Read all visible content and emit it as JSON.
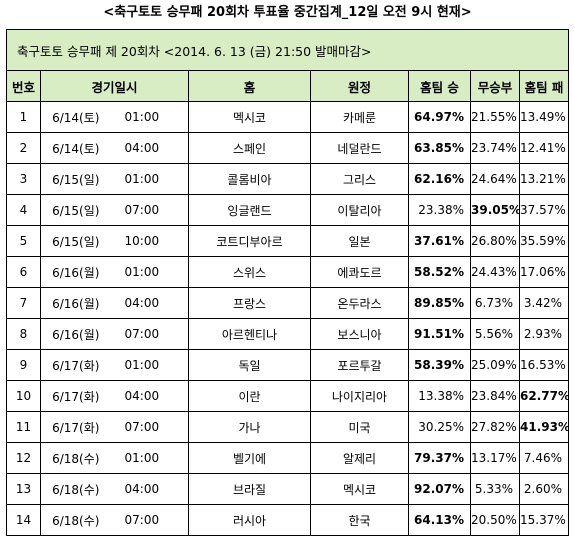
{
  "page_title": "<축구토토 승무패 20회차 투표율 중간집계_12일 오전 9시 현재>",
  "table_header": "축구토토 승무패 제 20회차 <2014. 6. 13 (금) 21:50 발매마감>",
  "columns": {
    "no": "번호",
    "datetime": "경기일시",
    "home": "홈",
    "away": "원정",
    "home_win": "홈팀 승",
    "draw": "무승부",
    "home_loss": "홈팀 패"
  },
  "rows": [
    {
      "no": "1",
      "date": "6/14(토)",
      "time": "01:00",
      "home": "멕시코",
      "away": "카메룬",
      "win": "64.97%",
      "draw": "21.55%",
      "loss": "13.49%",
      "bold": "win"
    },
    {
      "no": "2",
      "date": "6/14(토)",
      "time": "04:00",
      "home": "스페인",
      "away": "네덜란드",
      "win": "63.85%",
      "draw": "23.74%",
      "loss": "12.41%",
      "bold": "win"
    },
    {
      "no": "3",
      "date": "6/15(일)",
      "time": "01:00",
      "home": "콜롬비아",
      "away": "그리스",
      "win": "62.16%",
      "draw": "24.64%",
      "loss": "13.21%",
      "bold": "win"
    },
    {
      "no": "4",
      "date": "6/15(일)",
      "time": "07:00",
      "home": "잉글랜드",
      "away": "이탈리아",
      "win": "23.38%",
      "draw": "39.05%",
      "loss": "37.57%",
      "bold": "draw"
    },
    {
      "no": "5",
      "date": "6/15(일)",
      "time": "10:00",
      "home": "코트디부아르",
      "away": "일본",
      "win": "37.61%",
      "draw": "26.80%",
      "loss": "35.59%",
      "bold": "win"
    },
    {
      "no": "6",
      "date": "6/16(월)",
      "time": "01:00",
      "home": "스위스",
      "away": "에콰도르",
      "win": "58.52%",
      "draw": "24.43%",
      "loss": "17.06%",
      "bold": "win"
    },
    {
      "no": "7",
      "date": "6/16(월)",
      "time": "04:00",
      "home": "프랑스",
      "away": "온두라스",
      "win": "89.85%",
      "draw": "6.73%",
      "loss": "3.42%",
      "bold": "win"
    },
    {
      "no": "8",
      "date": "6/16(월)",
      "time": "07:00",
      "home": "아르헨티나",
      "away": "보스니아",
      "win": "91.51%",
      "draw": "5.56%",
      "loss": "2.93%",
      "bold": "win"
    },
    {
      "no": "9",
      "date": "6/17(화)",
      "time": "01:00",
      "home": "독일",
      "away": "포르투갈",
      "win": "58.39%",
      "draw": "25.09%",
      "loss": "16.53%",
      "bold": "win"
    },
    {
      "no": "10",
      "date": "6/17(화)",
      "time": "04:00",
      "home": "이란",
      "away": "나이지리아",
      "win": "13.38%",
      "draw": "23.84%",
      "loss": "62.77%",
      "bold": "loss"
    },
    {
      "no": "11",
      "date": "6/17(화)",
      "time": "07:00",
      "home": "가나",
      "away": "미국",
      "win": "30.25%",
      "draw": "27.82%",
      "loss": "41.93%",
      "bold": "loss"
    },
    {
      "no": "12",
      "date": "6/18(수)",
      "time": "01:00",
      "home": "벨기에",
      "away": "알제리",
      "win": "79.37%",
      "draw": "13.17%",
      "loss": "7.46%",
      "bold": "win"
    },
    {
      "no": "13",
      "date": "6/18(수)",
      "time": "04:00",
      "home": "브라질",
      "away": "멕시코",
      "win": "92.07%",
      "draw": "5.33%",
      "loss": "2.60%",
      "bold": "win"
    },
    {
      "no": "14",
      "date": "6/18(수)",
      "time": "07:00",
      "home": "러시아",
      "away": "한국",
      "win": "64.13%",
      "draw": "20.50%",
      "loss": "15.37%",
      "bold": "win"
    }
  ]
}
